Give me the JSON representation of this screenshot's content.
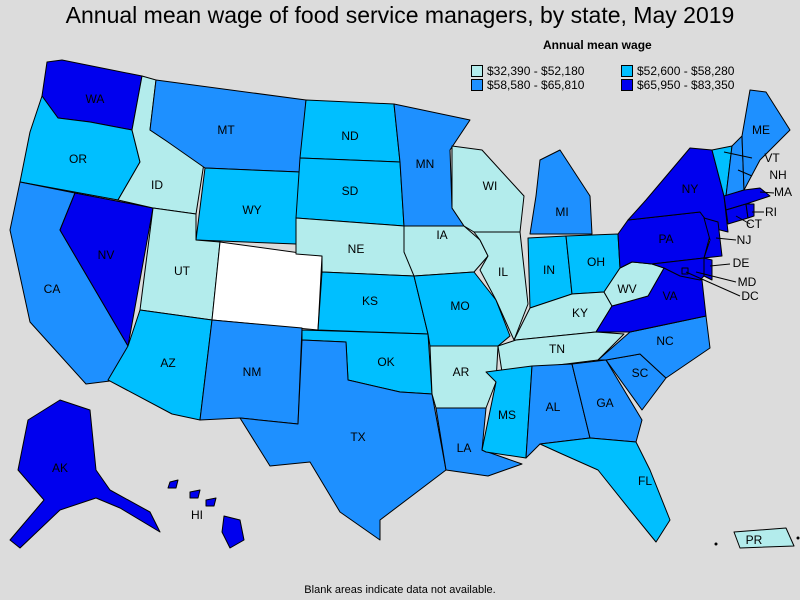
{
  "title": "Annual mean wage of food service managers, by state, May 2019",
  "legend": {
    "title": "Annual mean wage",
    "bins": [
      {
        "label": "$32,390 - $52,180",
        "color": "#b3ecec"
      },
      {
        "label": "$52,600 - $58,280",
        "color": "#00bfff"
      },
      {
        "label": "$58,580 - $65,810",
        "color": "#1e90ff"
      },
      {
        "label": "$65,950 - $83,350",
        "color": "#0000ee"
      }
    ]
  },
  "footnote": "Blank areas indicate data not available.",
  "colors": {
    "no_data": "#ffffff",
    "background": "#dcdcdc"
  },
  "chart_data": {
    "type": "choropleth",
    "states": [
      {
        "abbr": "WA",
        "bin": 3
      },
      {
        "abbr": "OR",
        "bin": 1
      },
      {
        "abbr": "CA",
        "bin": 2
      },
      {
        "abbr": "NV",
        "bin": 3
      },
      {
        "abbr": "ID",
        "bin": 0
      },
      {
        "abbr": "MT",
        "bin": 2
      },
      {
        "abbr": "WY",
        "bin": 1
      },
      {
        "abbr": "UT",
        "bin": 0
      },
      {
        "abbr": "AZ",
        "bin": 1
      },
      {
        "abbr": "CO",
        "bin": null
      },
      {
        "abbr": "NM",
        "bin": 2
      },
      {
        "abbr": "ND",
        "bin": 1
      },
      {
        "abbr": "SD",
        "bin": 1
      },
      {
        "abbr": "NE",
        "bin": 0
      },
      {
        "abbr": "KS",
        "bin": 1
      },
      {
        "abbr": "OK",
        "bin": 1
      },
      {
        "abbr": "TX",
        "bin": 2
      },
      {
        "abbr": "MN",
        "bin": 2
      },
      {
        "abbr": "IA",
        "bin": 0
      },
      {
        "abbr": "MO",
        "bin": 1
      },
      {
        "abbr": "AR",
        "bin": 0
      },
      {
        "abbr": "LA",
        "bin": 2
      },
      {
        "abbr": "WI",
        "bin": 0
      },
      {
        "abbr": "IL",
        "bin": 0
      },
      {
        "abbr": "MI",
        "bin": 2
      },
      {
        "abbr": "IN",
        "bin": 1
      },
      {
        "abbr": "OH",
        "bin": 1
      },
      {
        "abbr": "KY",
        "bin": 0
      },
      {
        "abbr": "TN",
        "bin": 0
      },
      {
        "abbr": "MS",
        "bin": 1
      },
      {
        "abbr": "AL",
        "bin": 2
      },
      {
        "abbr": "GA",
        "bin": 2
      },
      {
        "abbr": "FL",
        "bin": 1
      },
      {
        "abbr": "SC",
        "bin": 2
      },
      {
        "abbr": "NC",
        "bin": 2
      },
      {
        "abbr": "VA",
        "bin": 3
      },
      {
        "abbr": "WV",
        "bin": 0
      },
      {
        "abbr": "PA",
        "bin": 3
      },
      {
        "abbr": "NY",
        "bin": 3
      },
      {
        "abbr": "VT",
        "bin": 1
      },
      {
        "abbr": "NH",
        "bin": 2
      },
      {
        "abbr": "ME",
        "bin": 2
      },
      {
        "abbr": "MA",
        "bin": 3
      },
      {
        "abbr": "RI",
        "bin": 3
      },
      {
        "abbr": "CT",
        "bin": 3
      },
      {
        "abbr": "NJ",
        "bin": 3
      },
      {
        "abbr": "DE",
        "bin": 3
      },
      {
        "abbr": "MD",
        "bin": 3
      },
      {
        "abbr": "DC",
        "bin": 3
      },
      {
        "abbr": "AK",
        "bin": 3
      },
      {
        "abbr": "HI",
        "bin": 3
      },
      {
        "abbr": "PR",
        "bin": 0
      }
    ]
  }
}
